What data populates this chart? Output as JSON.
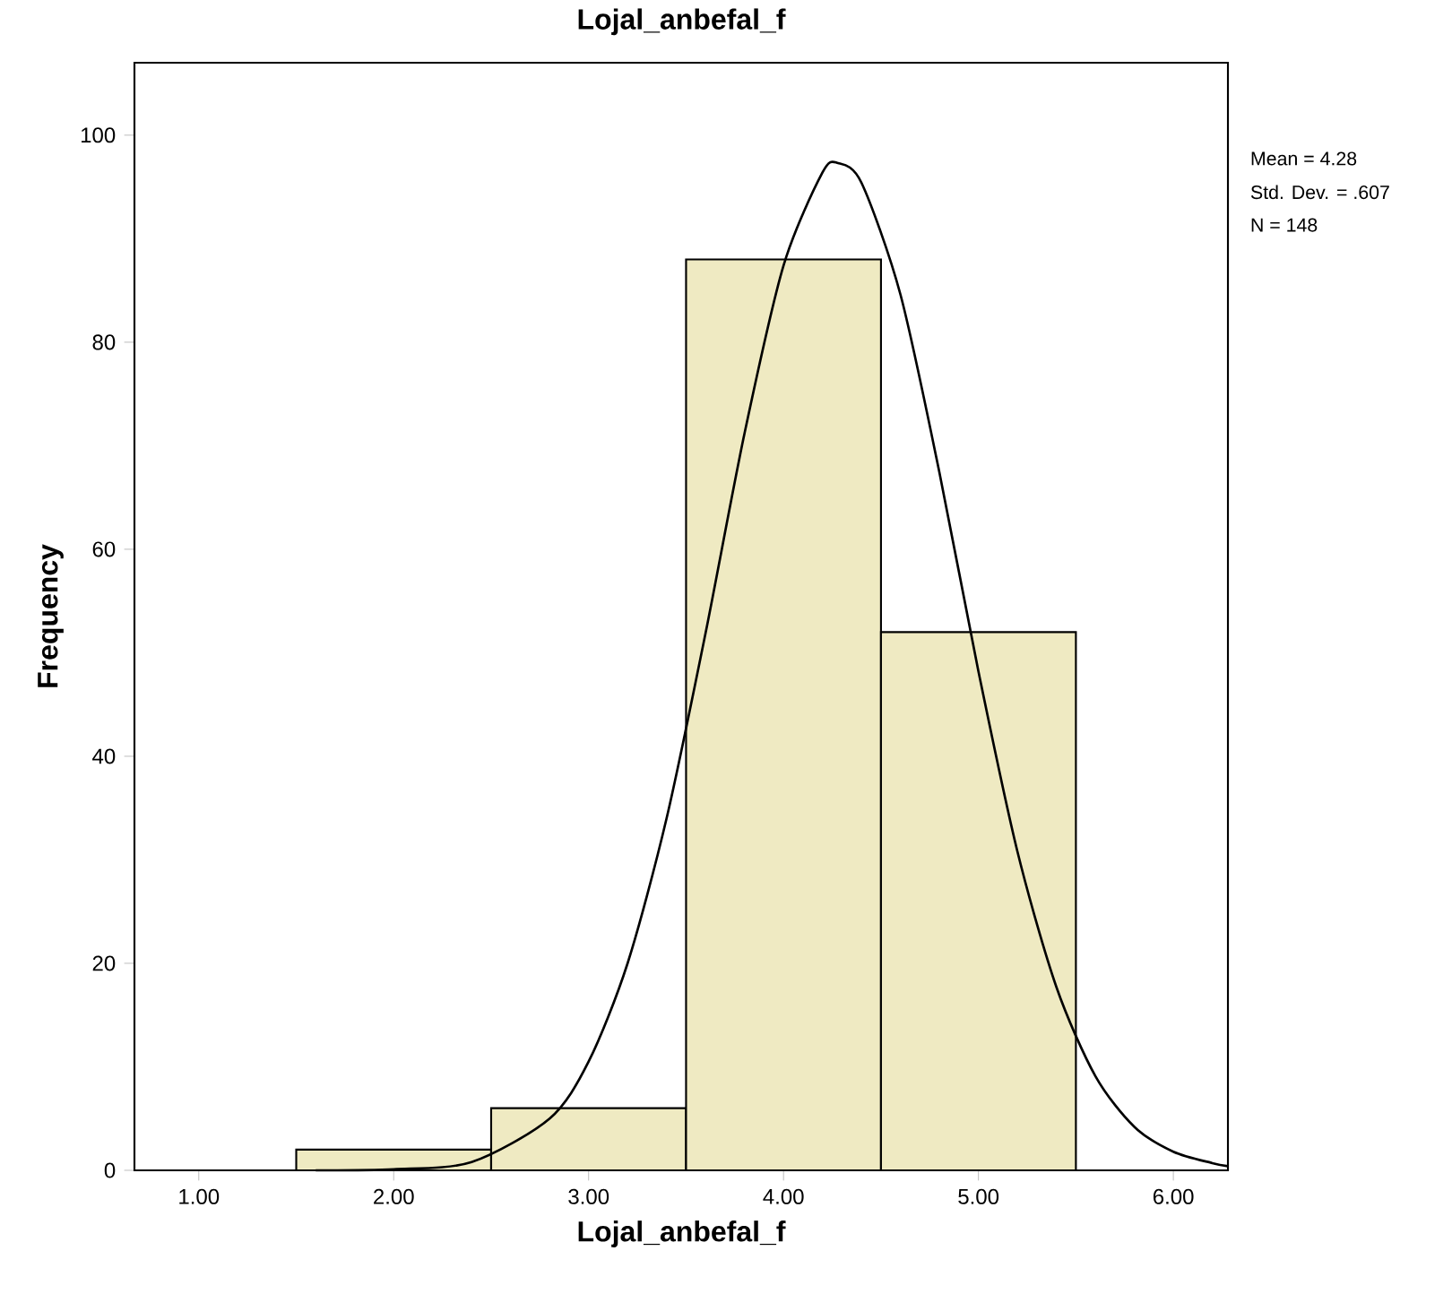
{
  "chart_data": {
    "type": "histogram",
    "title": "Lojal_anbefal_f",
    "xlabel": "Lojal_anbefal_f",
    "ylabel": "Frequency",
    "series": [
      {
        "color": "#efeac2",
        "bins": [
          1.5,
          2.5,
          3.5,
          4.5,
          5.5
        ],
        "values": [
          2,
          6,
          88,
          52
        ]
      },
      {
        "type": "line",
        "color": "#000000",
        "x": [
          1.6,
          2.0,
          2.4,
          2.8,
          3.0,
          3.2,
          3.4,
          3.6,
          3.8,
          4.0,
          4.2,
          4.28,
          4.4,
          4.6,
          4.8,
          5.0,
          5.2,
          5.4,
          5.6,
          5.8,
          6.0,
          6.2,
          6.28
        ],
        "values": [
          0,
          0.1,
          0.8,
          5.0,
          10.5,
          20.0,
          34.0,
          51.9,
          71.2,
          87.4,
          96.4,
          97.3,
          95.4,
          84.6,
          67.4,
          48.2,
          30.8,
          17.7,
          9.1,
          4.2,
          1.8,
          0.7,
          0.4
        ]
      }
    ],
    "xlim": [
      0.67,
      6.28
    ],
    "ylim": [
      0,
      107
    ],
    "xticks": [
      {
        "value": 1,
        "label": "1.00"
      },
      {
        "value": 2,
        "label": "2.00"
      },
      {
        "value": 3,
        "label": "3.00"
      },
      {
        "value": 4,
        "label": "4.00"
      },
      {
        "value": 5,
        "label": "5.00"
      },
      {
        "value": 6,
        "label": "6.00"
      }
    ],
    "yticks": [
      0,
      20,
      40,
      60,
      80,
      100
    ],
    "annotations": [
      "Mean = 4.28",
      "Std. Dev. = .607",
      "N = 148"
    ]
  }
}
